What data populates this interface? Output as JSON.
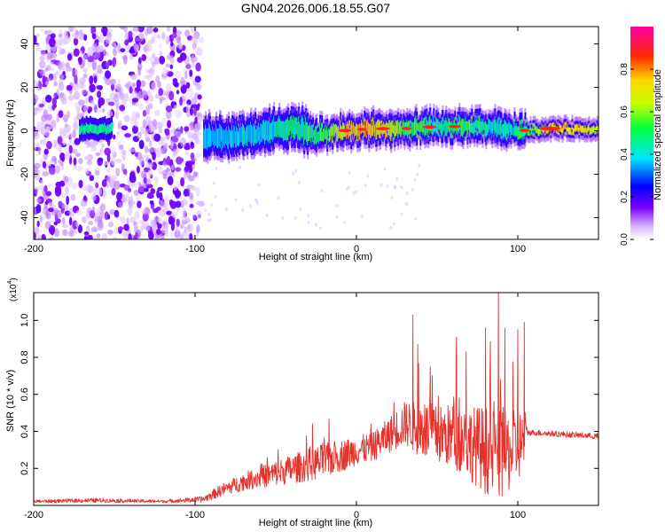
{
  "title": "GN04.2026.006.18.55.G07",
  "colors": {
    "snr_line": "#e8302a",
    "axis": "#000000"
  },
  "chart_data": [
    {
      "type": "heatmap",
      "title": "GN04.2026.006.18.55.G07",
      "xlabel": "Height of straight line (km)",
      "ylabel": "Frequency (Hz)",
      "xlim": [
        -200,
        150
      ],
      "ylim": [
        -50,
        48
      ],
      "xticks": [
        -200,
        -100,
        0,
        100
      ],
      "xtick_labels": [
        "-200",
        "-100",
        "0",
        "100"
      ],
      "yticks": [
        40,
        20,
        0,
        -20,
        -40
      ],
      "ytick_labels": [
        "40",
        "20",
        "0",
        "-20",
        "-40"
      ],
      "colorbar": {
        "label": "Normalized spectral amplitude",
        "range": [
          0,
          1
        ],
        "ticks": [
          0.0,
          0.2,
          0.4,
          0.6,
          0.8
        ],
        "tick_labels": [
          "0.0",
          "0.2",
          "0.4",
          "0.6",
          "0.8"
        ]
      },
      "noise_region_x": [
        -200,
        -96
      ],
      "band_x": [
        -95,
        150
      ],
      "ridge": [
        {
          "x": -170,
          "y": 1,
          "amp": 0.45
        },
        {
          "x": -160,
          "y": 1,
          "amp": 0.4
        },
        {
          "x": -120,
          "y": 2,
          "amp": 0.3
        },
        {
          "x": -100,
          "y": -2,
          "amp": 0.45
        },
        {
          "x": -80,
          "y": -3,
          "amp": 0.5
        },
        {
          "x": -60,
          "y": -1,
          "amp": 0.55
        },
        {
          "x": -40,
          "y": 2,
          "amp": 0.6
        },
        {
          "x": -25,
          "y": -2,
          "amp": 0.65
        },
        {
          "x": -10,
          "y": 0,
          "amp": 0.85
        },
        {
          "x": 10,
          "y": 1,
          "amp": 0.9
        },
        {
          "x": 30,
          "y": 1,
          "amp": 0.7
        },
        {
          "x": 50,
          "y": 2,
          "amp": 0.6
        },
        {
          "x": 70,
          "y": 2,
          "amp": 0.65
        },
        {
          "x": 90,
          "y": 1,
          "amp": 0.55
        },
        {
          "x": 100,
          "y": 0,
          "amp": 0.6
        },
        {
          "x": 120,
          "y": 1,
          "amp": 0.9
        },
        {
          "x": 150,
          "y": 1,
          "amp": 0.8
        }
      ]
    },
    {
      "type": "line",
      "xlabel": "Height of straight line (km)",
      "ylabel": "SNR (10 * v/v)",
      "y_multiplier_label": "(x10",
      "y_multiplier_exponent": "4",
      "y_multiplier_suffix": ")",
      "xlim": [
        -200,
        150
      ],
      "ylim": [
        0,
        1.15
      ],
      "xticks": [
        -200,
        -100,
        0,
        100
      ],
      "xtick_labels": [
        "-200",
        "-100",
        "0",
        "100"
      ],
      "yticks": [
        0.2,
        0.4,
        0.6,
        0.8,
        1.0
      ],
      "ytick_labels": [
        "0.2",
        "0.4",
        "0.6",
        "0.8",
        "1.0"
      ],
      "series": [
        {
          "name": "SNR",
          "color": "#e8302a",
          "envelope": {
            "x": [
              -200,
              -160,
              -120,
              -95,
              -85,
              -70,
              -55,
              -40,
              -20,
              0,
              10,
              20,
              30,
              40,
              50,
              60,
              70,
              80,
              90,
              100,
              104,
              106,
              110,
              130,
              150
            ],
            "base": [
              0.02,
              0.025,
              0.02,
              0.03,
              0.07,
              0.12,
              0.15,
              0.18,
              0.22,
              0.28,
              0.3,
              0.36,
              0.42,
              0.38,
              0.35,
              0.34,
              0.3,
              0.25,
              0.22,
              0.28,
              0.32,
              0.39,
              0.39,
              0.38,
              0.37
            ],
            "jitter": [
              0.01,
              0.015,
              0.01,
              0.02,
              0.04,
              0.06,
              0.08,
              0.1,
              0.12,
              0.1,
              0.1,
              0.12,
              0.15,
              0.2,
              0.2,
              0.22,
              0.25,
              0.3,
              0.3,
              0.25,
              0.2,
              0.02,
              0.02,
              0.02,
              0.02
            ]
          },
          "peaks": [
            {
              "x": 35,
              "y": 1.03
            },
            {
              "x": 38,
              "y": 0.87
            },
            {
              "x": 62,
              "y": 0.91
            },
            {
              "x": 68,
              "y": 0.83
            },
            {
              "x": 80,
              "y": 0.96
            },
            {
              "x": 88,
              "y": 1.17
            },
            {
              "x": 92,
              "y": 0.96
            },
            {
              "x": 100,
              "y": 0.95
            },
            {
              "x": 104,
              "y": 0.99
            }
          ]
        }
      ]
    }
  ]
}
